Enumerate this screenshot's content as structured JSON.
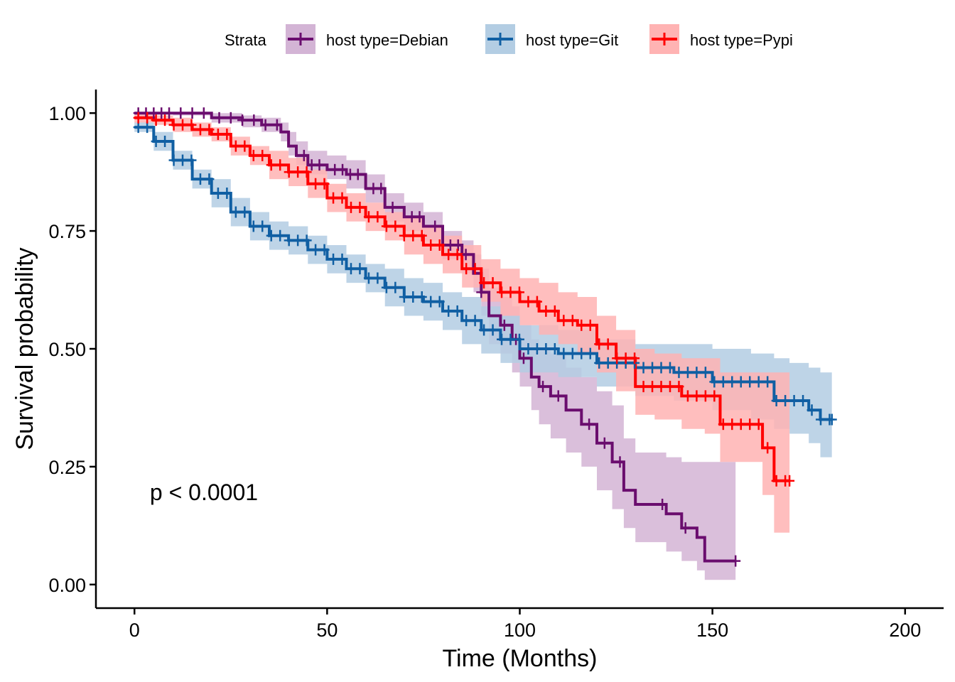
{
  "chart_data": {
    "type": "line",
    "subtype": "kaplan-meier step survival curve with confidence bands",
    "title": "",
    "xlabel": "Time (Months)",
    "ylabel": "Survival probability",
    "xlim": [
      -10,
      210
    ],
    "ylim": [
      -0.05,
      1.05
    ],
    "x_ticks": [
      0,
      50,
      100,
      150,
      200
    ],
    "x_tick_labels": [
      "0",
      "50",
      "100",
      "150",
      "200"
    ],
    "y_ticks": [
      0,
      0.25,
      0.5,
      0.75,
      1.0
    ],
    "y_tick_labels": [
      "0.00",
      "0.25",
      "0.50",
      "0.75",
      "1.00"
    ],
    "grid": false,
    "legend": {
      "title": "Strata",
      "placement": "top",
      "entries": [
        "host type=Debian",
        "host type=Git",
        "host type=Pypi"
      ]
    },
    "annotation": {
      "text": "p < 0.0001",
      "x": 4,
      "y": 0.2
    },
    "series": [
      {
        "name": "host type=Debian",
        "color": "#6a0d6e",
        "band_color": "#d3b4d5",
        "x": [
          0,
          10,
          20,
          28,
          33,
          38,
          40,
          42,
          45,
          50,
          55,
          60,
          65,
          70,
          75,
          80,
          85,
          88,
          90,
          92,
          95,
          98,
          100,
          103,
          105,
          108,
          112,
          116,
          120,
          124,
          127,
          130,
          138,
          142,
          146,
          148,
          156
        ],
        "y": [
          1.0,
          1.0,
          0.99,
          0.985,
          0.975,
          0.96,
          0.93,
          0.91,
          0.89,
          0.88,
          0.87,
          0.84,
          0.8,
          0.78,
          0.76,
          0.72,
          0.7,
          0.66,
          0.62,
          0.57,
          0.55,
          0.52,
          0.48,
          0.44,
          0.42,
          0.4,
          0.37,
          0.34,
          0.3,
          0.26,
          0.2,
          0.17,
          0.15,
          0.12,
          0.1,
          0.05,
          0.05
        ],
        "lower": [
          1.0,
          0.995,
          0.98,
          0.97,
          0.96,
          0.94,
          0.91,
          0.89,
          0.87,
          0.86,
          0.84,
          0.81,
          0.77,
          0.75,
          0.73,
          0.69,
          0.66,
          0.62,
          0.57,
          0.51,
          0.49,
          0.45,
          0.42,
          0.37,
          0.34,
          0.31,
          0.28,
          0.25,
          0.2,
          0.16,
          0.12,
          0.09,
          0.07,
          0.05,
          0.03,
          0.01,
          0.01
        ],
        "upper": [
          1.0,
          1.0,
          1.0,
          0.995,
          0.99,
          0.98,
          0.96,
          0.94,
          0.92,
          0.91,
          0.9,
          0.87,
          0.83,
          0.81,
          0.79,
          0.75,
          0.73,
          0.7,
          0.67,
          0.63,
          0.61,
          0.59,
          0.55,
          0.52,
          0.5,
          0.49,
          0.46,
          0.44,
          0.41,
          0.38,
          0.31,
          0.28,
          0.27,
          0.26,
          0.26,
          0.26,
          0.26
        ],
        "censor_x": [
          1,
          3,
          5,
          7,
          9,
          12,
          15,
          18,
          22,
          25,
          28,
          31,
          34,
          37,
          44,
          46,
          48,
          52,
          54,
          56,
          58,
          62,
          64,
          67,
          72,
          74,
          78,
          82,
          84,
          86,
          90,
          96,
          99,
          101,
          106,
          110,
          118,
          122,
          126,
          137,
          143,
          156
        ]
      },
      {
        "name": "host type=Git",
        "color": "#105fa3",
        "band_color": "#b3cde3",
        "x": [
          0,
          5,
          10,
          15,
          20,
          25,
          30,
          35,
          40,
          45,
          50,
          55,
          60,
          65,
          70,
          75,
          80,
          85,
          90,
          95,
          100,
          110,
          120,
          130,
          140,
          150,
          160,
          166,
          170,
          175,
          178,
          181
        ],
        "y": [
          0.97,
          0.94,
          0.9,
          0.86,
          0.83,
          0.79,
          0.76,
          0.74,
          0.73,
          0.71,
          0.69,
          0.67,
          0.65,
          0.63,
          0.61,
          0.6,
          0.58,
          0.56,
          0.54,
          0.52,
          0.5,
          0.49,
          0.47,
          0.46,
          0.45,
          0.43,
          0.43,
          0.39,
          0.39,
          0.37,
          0.35,
          0.35
        ],
        "lower": [
          0.96,
          0.92,
          0.88,
          0.84,
          0.8,
          0.76,
          0.73,
          0.71,
          0.7,
          0.68,
          0.66,
          0.64,
          0.62,
          0.59,
          0.57,
          0.56,
          0.54,
          0.51,
          0.49,
          0.47,
          0.45,
          0.44,
          0.42,
          0.4,
          0.39,
          0.37,
          0.35,
          0.33,
          0.32,
          0.3,
          0.27,
          0.27
        ],
        "upper": [
          0.98,
          0.96,
          0.92,
          0.88,
          0.86,
          0.82,
          0.79,
          0.77,
          0.76,
          0.74,
          0.72,
          0.7,
          0.68,
          0.67,
          0.65,
          0.64,
          0.62,
          0.61,
          0.59,
          0.57,
          0.55,
          0.54,
          0.52,
          0.51,
          0.51,
          0.5,
          0.49,
          0.48,
          0.47,
          0.46,
          0.45,
          0.45
        ]
      },
      {
        "name": "host type=Pypi",
        "color": "#ff0000",
        "band_color": "#ffb3b3",
        "x": [
          0,
          5,
          10,
          15,
          20,
          25,
          30,
          35,
          40,
          45,
          50,
          55,
          60,
          65,
          70,
          75,
          80,
          85,
          90,
          95,
          100,
          105,
          110,
          115,
          120,
          125,
          130,
          135,
          142,
          148,
          152,
          156,
          163,
          166,
          170
        ],
        "y": [
          0.99,
          0.985,
          0.975,
          0.965,
          0.955,
          0.93,
          0.91,
          0.89,
          0.875,
          0.85,
          0.82,
          0.8,
          0.78,
          0.76,
          0.74,
          0.72,
          0.7,
          0.67,
          0.64,
          0.62,
          0.6,
          0.58,
          0.56,
          0.55,
          0.51,
          0.48,
          0.42,
          0.42,
          0.4,
          0.4,
          0.34,
          0.34,
          0.29,
          0.22,
          0.22
        ],
        "lower": [
          0.98,
          0.975,
          0.96,
          0.95,
          0.94,
          0.91,
          0.89,
          0.86,
          0.845,
          0.82,
          0.79,
          0.77,
          0.75,
          0.73,
          0.7,
          0.68,
          0.66,
          0.63,
          0.6,
          0.57,
          0.55,
          0.53,
          0.51,
          0.49,
          0.45,
          0.41,
          0.36,
          0.35,
          0.33,
          0.32,
          0.26,
          0.26,
          0.19,
          0.11,
          0.11
        ],
        "upper": [
          1.0,
          0.995,
          0.99,
          0.98,
          0.97,
          0.95,
          0.93,
          0.92,
          0.905,
          0.88,
          0.85,
          0.83,
          0.81,
          0.79,
          0.78,
          0.76,
          0.74,
          0.72,
          0.69,
          0.67,
          0.65,
          0.64,
          0.62,
          0.61,
          0.57,
          0.54,
          0.5,
          0.49,
          0.48,
          0.48,
          0.45,
          0.45,
          0.45,
          0.45,
          0.45
        ]
      }
    ]
  }
}
